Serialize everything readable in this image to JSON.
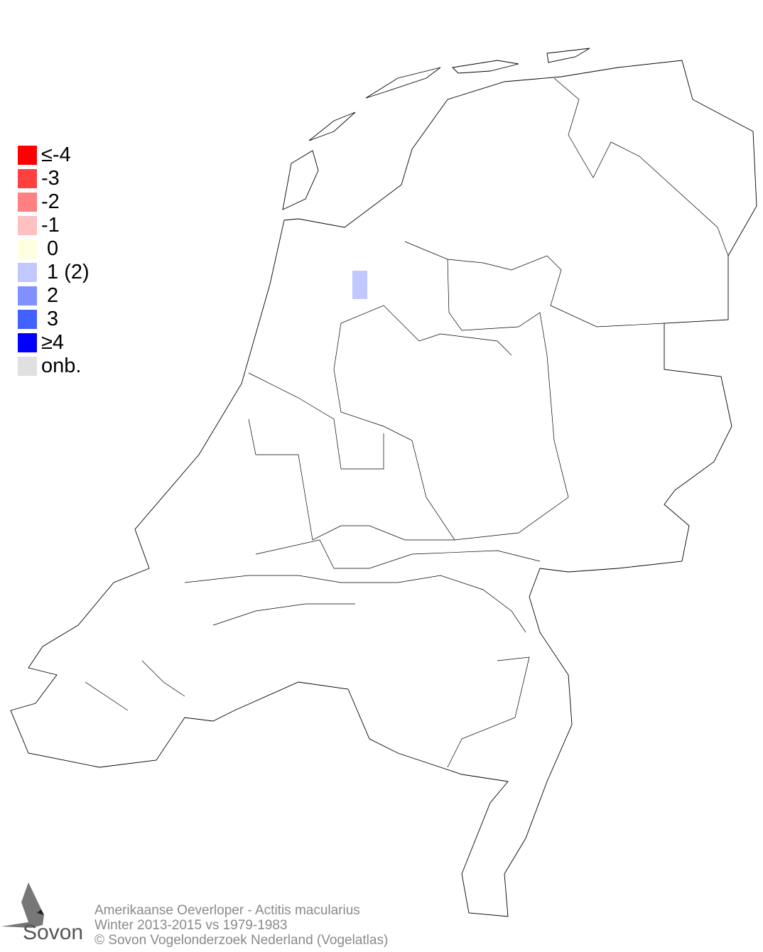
{
  "legend": {
    "items": [
      {
        "label": "≤-4",
        "color": "#ff0000"
      },
      {
        "label": "-3",
        "color": "#ff4040"
      },
      {
        "label": "-2",
        "color": "#ff8080"
      },
      {
        "label": "-1",
        "color": "#ffc0c0"
      },
      {
        "label": " 0",
        "color": "#ffffe0"
      },
      {
        "label": " 1 (2)",
        "color": "#c0c8ff"
      },
      {
        "label": " 2",
        "color": "#8090ff"
      },
      {
        "label": " 3",
        "color": "#4060ff"
      },
      {
        "label": "≥4",
        "color": "#0000ff"
      },
      {
        "label": "onb.",
        "color": "#e0e0e0"
      }
    ]
  },
  "map": {
    "region": "Netherlands",
    "cells": [
      {
        "value": 1,
        "color": "#c0c8ff"
      }
    ]
  },
  "footer": {
    "line1": "Amerikaanse Oeverloper - Actitis macularius",
    "line2": "Winter 2013-2015 vs 1979-1983",
    "line3": "© Sovon Vogelonderzoek Nederland (Vogelatlas)"
  },
  "logo": {
    "text": "Sovon",
    "icon": "swallow-icon"
  }
}
